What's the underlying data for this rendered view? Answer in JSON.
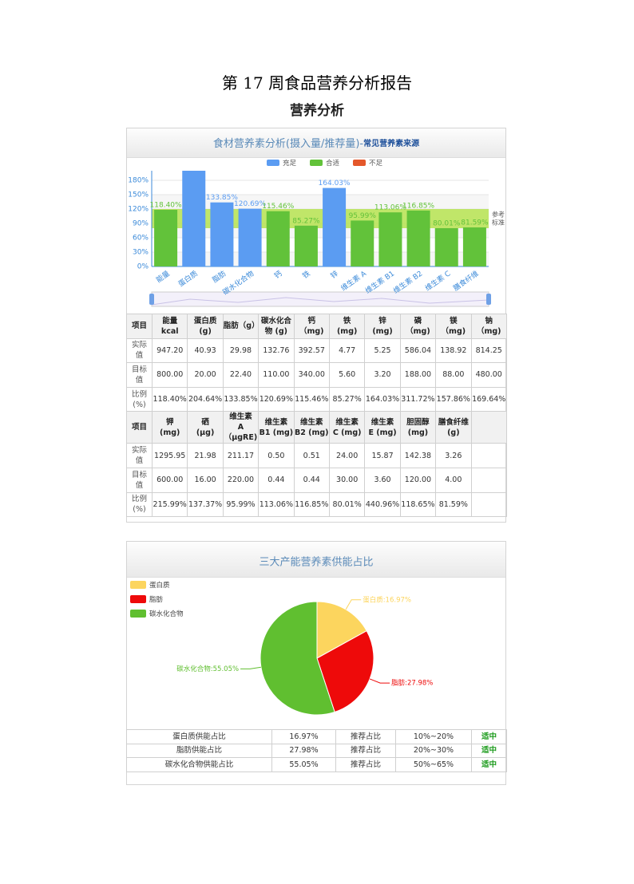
{
  "title": "第 17 周食品营养分析报告",
  "subtitle": "营养分析",
  "chart_data": [
    {
      "type": "bar",
      "title": "食材营养素分析(摄入量/推荐量)-",
      "subtitle": "常见营养素来源",
      "categories": [
        "能量",
        "蛋白质",
        "脂肪",
        "碳水化合物",
        "钙",
        "铁",
        "锌",
        "维生素 A",
        "维生素 B1",
        "维生素 B2",
        "维生素 C",
        "膳食纤维"
      ],
      "series": [
        {
          "name": "充足",
          "color": "#5b9cf2",
          "values": [
            null,
            204.64,
            133.85,
            120.69,
            null,
            null,
            164.03,
            null,
            null,
            null,
            null,
            null
          ],
          "value_labels": [
            null,
            null,
            "133.85%",
            "120.69%",
            null,
            null,
            "164.03%",
            null,
            null,
            null,
            null,
            null
          ]
        },
        {
          "name": "合适",
          "color": "#62c23a",
          "values": [
            118.4,
            null,
            null,
            null,
            115.46,
            85.27,
            null,
            95.99,
            113.06,
            116.85,
            80.01,
            81.59
          ],
          "value_labels": [
            "118.40%",
            null,
            null,
            null,
            "115.46%",
            "85.27%",
            null,
            "95.99%",
            "113.06%",
            "116.85%",
            "80.01%",
            "81.59%"
          ]
        },
        {
          "name": "不足",
          "color": "#e4582b",
          "values": [
            null,
            null,
            null,
            null,
            null,
            null,
            null,
            null,
            null,
            null,
            null,
            null
          ]
        }
      ],
      "ylim": [
        0,
        200
      ],
      "yticks": [
        {
          "value": 0,
          "label": "0%"
        },
        {
          "value": 30,
          "label": "30%"
        },
        {
          "value": 60,
          "label": "60%"
        },
        {
          "value": 90,
          "label": "90%"
        },
        {
          "value": 120,
          "label": "120%"
        },
        {
          "value": 150,
          "label": "150%"
        },
        {
          "value": 180,
          "label": "180%"
        }
      ],
      "reference_band": {
        "range": [
          80,
          120
        ],
        "label_lines": [
          "参考",
          "标准"
        ],
        "color": "#b5e24f"
      },
      "grid": true,
      "legend": "top"
    },
    {
      "type": "pie",
      "title": "三大产能营养素供能占比",
      "categories": [
        "蛋白质",
        "脂肪",
        "碳水化合物"
      ],
      "values": [
        16.97,
        27.98,
        55.05
      ],
      "value_labels": [
        "蛋白质:16.97%",
        "脂肪:27.98%",
        "碳水化合物:55.05%"
      ],
      "colors": [
        "#fcd55e",
        "#ee0a0a",
        "#60bf30"
      ],
      "legend": "top-left"
    }
  ],
  "table": {
    "blocks": [
      {
        "corner": "项目",
        "header": [
          "能量\nkcal",
          "蛋白质\n(g)",
          "脂肪（g）",
          "碳水化合\n物 (g)",
          "钙\n（mg)",
          "铁\n(mg)",
          "锌\n(mg)",
          "磷\n（mg)",
          "镁\n（mg)",
          "钠\n（mg)"
        ],
        "rows": [
          {
            "label": "实际\n值",
            "cells": [
              "947.20",
              "40.93",
              "29.98",
              "132.76",
              "392.57",
              "4.77",
              "5.25",
              "586.04",
              "138.92",
              "814.25"
            ]
          },
          {
            "label": "目标\n值",
            "cells": [
              "800.00",
              "20.00",
              "22.40",
              "110.00",
              "340.00",
              "5.60",
              "3.20",
              "188.00",
              "88.00",
              "480.00"
            ]
          },
          {
            "label": "比例\n(%)",
            "cells": [
              "118.40%",
              "204.64%",
              "133.85%",
              "120.69%",
              "115.46%",
              "85.27%",
              "164.03%",
              "311.72%",
              "157.86%",
              "169.64%"
            ]
          }
        ]
      },
      {
        "corner": "项目",
        "header": [
          "钾\n(mg)",
          "硒\n(μg)",
          "维生素\nA（μgRE)",
          "维生素\nB1 (mg)",
          "维生素\nB2 (mg)",
          "维生素\nC (mg)",
          "维生素\nE (mg)",
          "胆固醇\n(mg)",
          "膳食纤维\n(g)"
        ],
        "rows": [
          {
            "label": "实际\n值",
            "cells": [
              "1295.95",
              "21.98",
              "211.17",
              "0.50",
              "0.51",
              "24.00",
              "15.87",
              "142.38",
              "3.26"
            ]
          },
          {
            "label": "目标\n值",
            "cells": [
              "600.00",
              "16.00",
              "220.00",
              "0.44",
              "0.44",
              "30.00",
              "3.60",
              "120.00",
              "4.00"
            ]
          },
          {
            "label": "比例\n(%)",
            "cells": [
              "215.99%",
              "137.37%",
              "95.99%",
              "113.06%",
              "116.85%",
              "80.01%",
              "440.96%",
              "118.65%",
              "81.59%"
            ]
          }
        ]
      }
    ]
  },
  "pie_table": {
    "rows": [
      [
        "蛋白质供能占比",
        "16.97%",
        "推荐占比",
        "10%~20%",
        "适中"
      ],
      [
        "脂肪供能占比",
        "27.98%",
        "推荐占比",
        "20%~30%",
        "适中"
      ],
      [
        "碳水化合物供能占比",
        "55.05%",
        "推荐占比",
        "50%~65%",
        "适中"
      ]
    ]
  }
}
